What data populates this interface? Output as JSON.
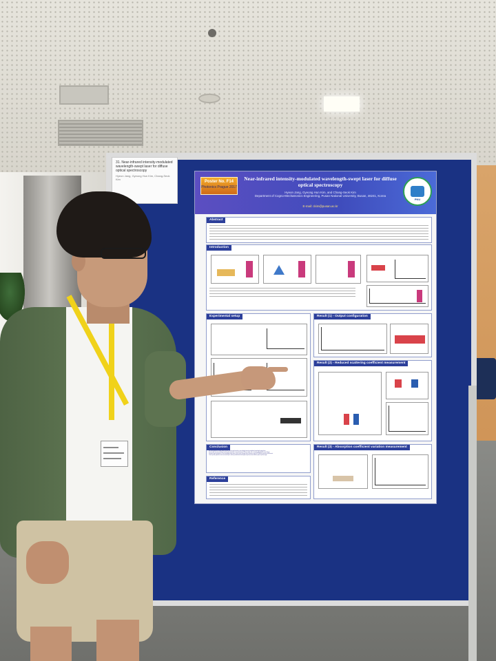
{
  "scene": {
    "label_card": {
      "title": "31. Near-infrared intensity-modulated wavelength-swept laser for diffuse optical spectroscopy",
      "authors": "Hyeon Jang, Gyeong Hun Kim, Chang-Seok Kim"
    },
    "poster": {
      "badge_number": "Poster No. F14",
      "badge_conference": "Photonics Prague 2017",
      "title": "Near-infrared intensity-modulated wavelength-swept laser for diffuse optical spectroscopy",
      "authors": "Hyeon Jang, Gyeong Hun Kim, and Chang-Seok Kim",
      "affiliation": "Department of Cogno-Mechatronics Engineering, Pusan National University, Busan, 46241, Korea",
      "email": "E-mail: ckim@pusan.ac.kr",
      "logo_text": "PNU",
      "sections": {
        "abstract": "Abstract",
        "introduction": "Introduction",
        "experimental_setup": "Experimental setup",
        "result1": "Result (1) - Output configuration",
        "result2": "Result (2) - Reduced scattering coefficient measurement",
        "result3": "Result (3) - Absorption coefficient variation measurement",
        "conclusion": "Conclusion",
        "reference": "Reference"
      },
      "conclusion_points": [
        "We have proposed a simple diffuse optical spectroscopy based on near-infrared intensity modulated wavelength-swept laser.",
        "Constructed intensity modulated wavelength-swept laser is operated around 800 nm region with a sweeping bandwidth of over 40 nm.",
        "Temporal output properties of the wavelength-swept laser can be easily changed from continuous wave to 80 MHz by switching SOA current.",
        "Tissue optical properties were measured by the intensity-modulated wavelength-swept laser based diffuse optical spectroscopy."
      ]
    }
  }
}
